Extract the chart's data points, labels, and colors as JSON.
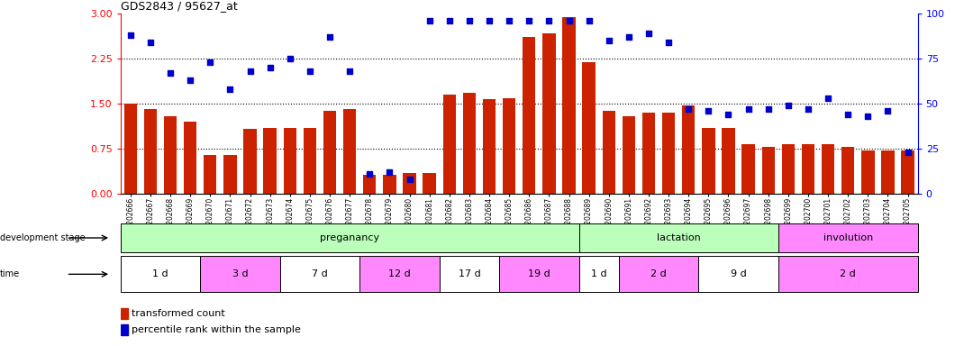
{
  "title": "GDS2843 / 95627_at",
  "samples": [
    "GSM202666",
    "GSM202667",
    "GSM202668",
    "GSM202669",
    "GSM202670",
    "GSM202671",
    "GSM202672",
    "GSM202673",
    "GSM202674",
    "GSM202675",
    "GSM202676",
    "GSM202677",
    "GSM202678",
    "GSM202679",
    "GSM202680",
    "GSM202681",
    "GSM202682",
    "GSM202683",
    "GSM202684",
    "GSM202685",
    "GSM202686",
    "GSM202687",
    "GSM202688",
    "GSM202689",
    "GSM202690",
    "GSM202691",
    "GSM202692",
    "GSM202693",
    "GSM202694",
    "GSM202695",
    "GSM202696",
    "GSM202697",
    "GSM202698",
    "GSM202699",
    "GSM202700",
    "GSM202701",
    "GSM202702",
    "GSM202703",
    "GSM202704",
    "GSM202705"
  ],
  "bar_values": [
    1.5,
    1.42,
    1.3,
    1.2,
    0.65,
    0.65,
    1.08,
    1.1,
    1.1,
    1.1,
    1.38,
    1.42,
    0.32,
    0.32,
    0.35,
    0.35,
    1.65,
    1.68,
    1.58,
    1.6,
    2.62,
    2.68,
    2.95,
    2.2,
    1.38,
    1.3,
    1.35,
    1.35,
    1.48,
    1.1,
    1.1,
    0.82,
    0.78,
    0.82,
    0.82,
    0.82,
    0.78,
    0.72,
    0.72,
    0.72
  ],
  "dot_values_pct": [
    88,
    84,
    67,
    63,
    73,
    58,
    68,
    70,
    75,
    68,
    87,
    68,
    11,
    12,
    8,
    96,
    96,
    96,
    96,
    96,
    96,
    96,
    96,
    96,
    85,
    87,
    89,
    84,
    47,
    46,
    44,
    47,
    47,
    49,
    47,
    53,
    44,
    43,
    46,
    23
  ],
  "bar_color": "#cc2200",
  "dot_color": "#0000cc",
  "ylim_left": [
    0,
    3.0
  ],
  "ylim_right": [
    0,
    100
  ],
  "yticks_left": [
    0,
    0.75,
    1.5,
    2.25,
    3.0
  ],
  "yticks_right": [
    0,
    25,
    50,
    75,
    100
  ],
  "hlines": [
    0.75,
    1.5,
    2.25
  ],
  "stage_defs": [
    {
      "label": "preganancy",
      "start": 0,
      "end": 23,
      "color": "#bbffbb"
    },
    {
      "label": "lactation",
      "start": 23,
      "end": 33,
      "color": "#bbffbb"
    },
    {
      "label": "involution",
      "start": 33,
      "end": 40,
      "color": "#ff88ff"
    }
  ],
  "time_groups": [
    {
      "label": "1 d",
      "start": 0,
      "end": 4,
      "color": "#ffffff"
    },
    {
      "label": "3 d",
      "start": 4,
      "end": 8,
      "color": "#ff88ff"
    },
    {
      "label": "7 d",
      "start": 8,
      "end": 12,
      "color": "#ffffff"
    },
    {
      "label": "12 d",
      "start": 12,
      "end": 16,
      "color": "#ff88ff"
    },
    {
      "label": "17 d",
      "start": 16,
      "end": 19,
      "color": "#ffffff"
    },
    {
      "label": "19 d",
      "start": 19,
      "end": 23,
      "color": "#ff88ff"
    },
    {
      "label": "1 d",
      "start": 23,
      "end": 25,
      "color": "#ffffff"
    },
    {
      "label": "2 d",
      "start": 25,
      "end": 29,
      "color": "#ff88ff"
    },
    {
      "label": "9 d",
      "start": 29,
      "end": 33,
      "color": "#ffffff"
    },
    {
      "label": "2 d",
      "start": 33,
      "end": 40,
      "color": "#ff88ff"
    }
  ],
  "legend_bar_label": "transformed count",
  "legend_dot_label": "percentile rank within the sample",
  "bg_color": "#ffffff"
}
